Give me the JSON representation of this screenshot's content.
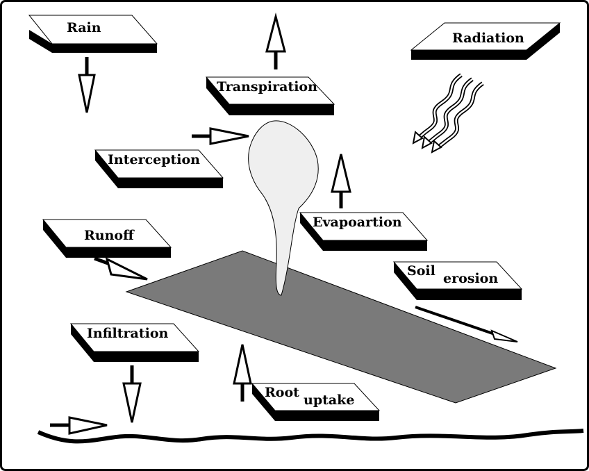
{
  "labels": {
    "rain": "Rain",
    "transpiration": "Transpiration",
    "radiation": "Radiation",
    "interception": "Interception",
    "evaporation": "Evapoartion",
    "runoff": "Runoff",
    "soil_erosion_main": "Soil",
    "soil_erosion_sub": "erosion",
    "infiltration": "Infiltration",
    "root_uptake_main": "Root",
    "root_uptake_sub": "uptake"
  },
  "colors": {
    "slab_top": "#ffffff",
    "slab_edge": "#000000",
    "ground": "#7a7a7a",
    "plant": "#f0f0f0",
    "outline": "#000000"
  }
}
